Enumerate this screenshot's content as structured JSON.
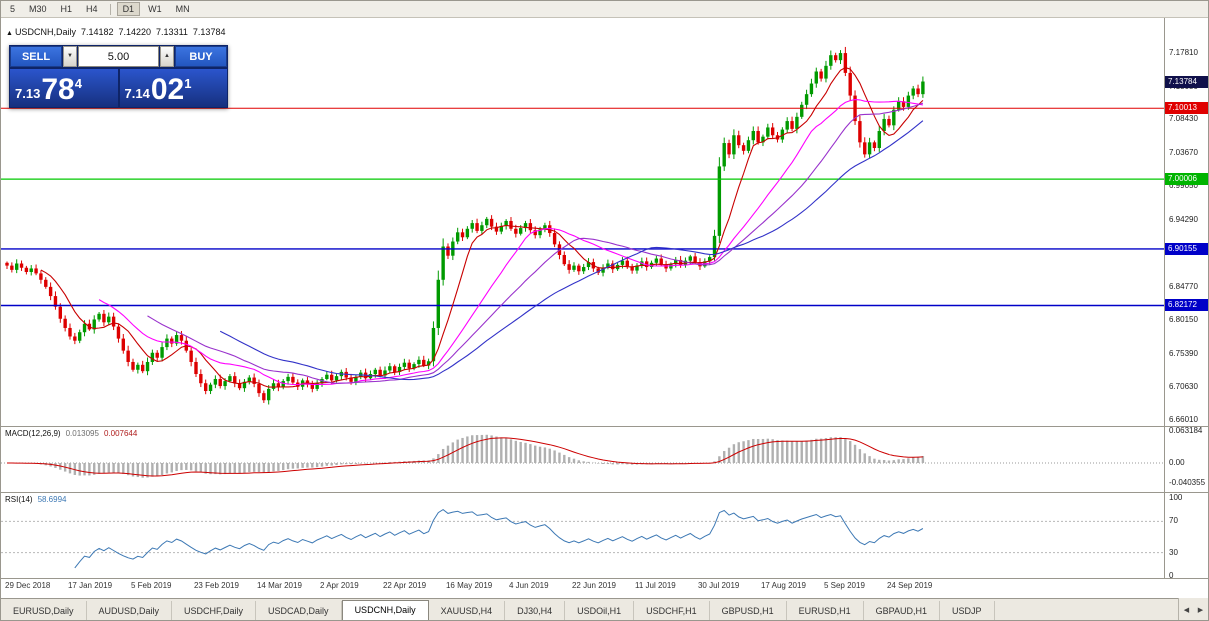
{
  "toolbar": {
    "timeframe_groups": [
      [
        "5",
        "M30",
        "H1",
        "H4"
      ],
      [
        "D1",
        "W1",
        "MN"
      ]
    ],
    "active_timeframe": "D1"
  },
  "chart_header": {
    "symbol": "USDCNH,Daily",
    "open": "7.14182",
    "high": "7.14220",
    "low": "7.13311",
    "close": "7.13784"
  },
  "trade_panel": {
    "sell_label": "SELL",
    "buy_label": "BUY",
    "volume": "5.00",
    "bid": {
      "prefix": "7.13",
      "main": "78",
      "sup": "4"
    },
    "ask": {
      "prefix": "7.14",
      "main": "02",
      "sup": "1"
    }
  },
  "icons": {
    "symbol_marker": "▲",
    "spinner_up": "▲",
    "spinner_down": "▼",
    "tab_scroll_left": "◀",
    "tab_scroll_right": "▶"
  },
  "price_axis": {
    "gridlines": [
      {
        "t": "7.17810",
        "p": 7.1781
      },
      {
        "t": "7.13050",
        "p": 7.1305
      },
      {
        "t": "7.08430",
        "p": 7.0843
      },
      {
        "t": "7.03670",
        "p": 7.0367
      },
      {
        "t": "6.99050",
        "p": 6.9905
      },
      {
        "t": "6.94290",
        "p": 6.9429
      },
      {
        "t": "6.89530",
        "p": 6.8953
      },
      {
        "t": "6.84770",
        "p": 6.8477
      },
      {
        "t": "6.80150",
        "p": 6.8015
      },
      {
        "t": "6.75390",
        "p": 6.7539
      },
      {
        "t": "6.70630",
        "p": 6.7063
      },
      {
        "t": "6.66010",
        "p": 6.6601
      }
    ],
    "tags": [
      {
        "t": "7.13784",
        "p": 7.13784,
        "bg": "#10104a"
      },
      {
        "t": "7.10013",
        "p": 7.10013,
        "bg": "#e00000"
      },
      {
        "t": "7.00006",
        "p": 7.00006,
        "bg": "#00b400"
      },
      {
        "t": "6.90155",
        "p": 6.90155,
        "bg": "#0000c8"
      },
      {
        "t": "6.82172",
        "p": 6.82172,
        "bg": "#0000c8"
      }
    ]
  },
  "indicators": {
    "macd": {
      "label": "MACD(12,26,9)",
      "value_main": "0.013095",
      "value_signal": "0.007644",
      "axis": [
        {
          "t": "0.063184",
          "v": 0.063184
        },
        {
          "t": "0.00",
          "v": 0
        },
        {
          "t": "-0.040355",
          "v": -0.040355
        }
      ]
    },
    "rsi": {
      "label": "RSI(14)",
      "value": "58.6994",
      "axis": [
        {
          "t": "100",
          "v": 100
        },
        {
          "t": "70",
          "v": 70
        },
        {
          "t": "30",
          "v": 30
        },
        {
          "t": "0",
          "v": 0
        }
      ],
      "levels": [
        70,
        30
      ]
    }
  },
  "tabs": {
    "items": [
      "EURUSD,Daily",
      "AUDUSD,Daily",
      "USDCHF,Daily",
      "USDCAD,Daily",
      "USDCNH,Daily",
      "XAUUSD,H4",
      "DJ30,H4",
      "USDOil,H1",
      "USDCHF,H1",
      "GBPUSD,H1",
      "EURUSD,H1",
      "GBPAUD,H1",
      "USDJP"
    ],
    "active": "USDCNH,Daily"
  },
  "chart_data": {
    "type": "candlestick",
    "title": "USDCNH,Daily",
    "x_axis_labels": [
      "29 Dec 2018",
      "17 Jan 2019",
      "5 Feb 2019",
      "23 Feb 2019",
      "14 Mar 2019",
      "2 Apr 2019",
      "22 Apr 2019",
      "16 May 2019",
      "4 Jun 2019",
      "22 Jun 2019",
      "11 Jul 2019",
      "30 Jul 2019",
      "17 Aug 2019",
      "5 Sep 2019",
      "24 Sep 2019"
    ],
    "tick_interval_candles": 13,
    "y_axis_range": [
      6.6601,
      7.1781
    ],
    "current_price": 7.13784,
    "closes": [
      6.878,
      6.872,
      6.881,
      6.875,
      6.869,
      6.874,
      6.867,
      6.858,
      6.848,
      6.835,
      6.82,
      6.803,
      6.79,
      6.778,
      6.772,
      6.784,
      6.796,
      6.788,
      6.802,
      6.81,
      6.798,
      6.806,
      6.792,
      6.775,
      6.758,
      6.742,
      6.731,
      6.738,
      6.729,
      6.742,
      6.755,
      6.748,
      6.763,
      6.775,
      6.768,
      6.78,
      6.772,
      6.758,
      6.742,
      6.725,
      6.712,
      6.701,
      6.71,
      6.718,
      6.708,
      6.715,
      6.722,
      6.712,
      6.705,
      6.714,
      6.72,
      6.711,
      6.698,
      6.688,
      6.704,
      6.712,
      6.706,
      6.715,
      6.721,
      6.713,
      6.707,
      6.716,
      6.71,
      6.704,
      6.712,
      6.718,
      6.724,
      6.716,
      6.722,
      6.728,
      6.72,
      6.714,
      6.721,
      6.727,
      6.719,
      6.725,
      6.731,
      6.723,
      6.73,
      6.736,
      6.728,
      6.735,
      6.741,
      6.733,
      6.739,
      6.745,
      6.737,
      6.743,
      6.79,
      6.858,
      6.905,
      6.892,
      6.912,
      6.925,
      6.918,
      6.93,
      6.938,
      6.927,
      6.935,
      6.944,
      6.933,
      6.926,
      6.934,
      6.941,
      6.93,
      6.923,
      6.931,
      6.938,
      6.928,
      6.921,
      6.929,
      6.935,
      6.924,
      6.908,
      6.893,
      6.88,
      6.872,
      6.878,
      6.87,
      6.876,
      6.883,
      6.874,
      6.868,
      6.875,
      6.881,
      6.873,
      6.879,
      6.885,
      6.877,
      6.871,
      6.878,
      6.884,
      6.876,
      6.882,
      6.888,
      6.88,
      6.874,
      6.88,
      6.886,
      6.879,
      6.885,
      6.891,
      6.883,
      6.877,
      6.884,
      6.89,
      6.92,
      7.018,
      7.051,
      7.035,
      7.062,
      7.048,
      7.04,
      7.055,
      7.068,
      7.052,
      7.06,
      7.073,
      7.062,
      7.056,
      7.07,
      7.082,
      7.071,
      7.088,
      7.105,
      7.12,
      7.135,
      7.152,
      7.142,
      7.16,
      7.175,
      7.168,
      7.178,
      7.15,
      7.118,
      7.082,
      7.052,
      7.035,
      7.052,
      7.044,
      7.068,
      7.085,
      7.076,
      7.098,
      7.11,
      7.102,
      7.118,
      7.128,
      7.12,
      7.13784
    ],
    "hlines": [
      {
        "price": 7.10013,
        "color": "#e00000",
        "w": 1
      },
      {
        "price": 7.00006,
        "color": "#00c800",
        "w": 1.2
      },
      {
        "price": 6.90155,
        "color": "#0000c8",
        "w": 1.4
      },
      {
        "price": 6.82172,
        "color": "#0000c8",
        "w": 1.4
      }
    ],
    "candle_up_color": "#009a00",
    "candle_down_color": "#dd0000",
    "moving_averages": [
      {
        "period": 8,
        "color": "#c80000"
      },
      {
        "period": 20,
        "color": "#ff00ff"
      },
      {
        "period": 30,
        "color": "#9932cc"
      },
      {
        "period": 45,
        "color": "#3232c8"
      }
    ],
    "macd": {
      "fast": 12,
      "slow": 26,
      "signal": 9,
      "bar_color": "#b0b0b0",
      "signal_color": "#cc0000"
    },
    "rsi": {
      "period": 14,
      "color": "#3c78b4"
    }
  }
}
